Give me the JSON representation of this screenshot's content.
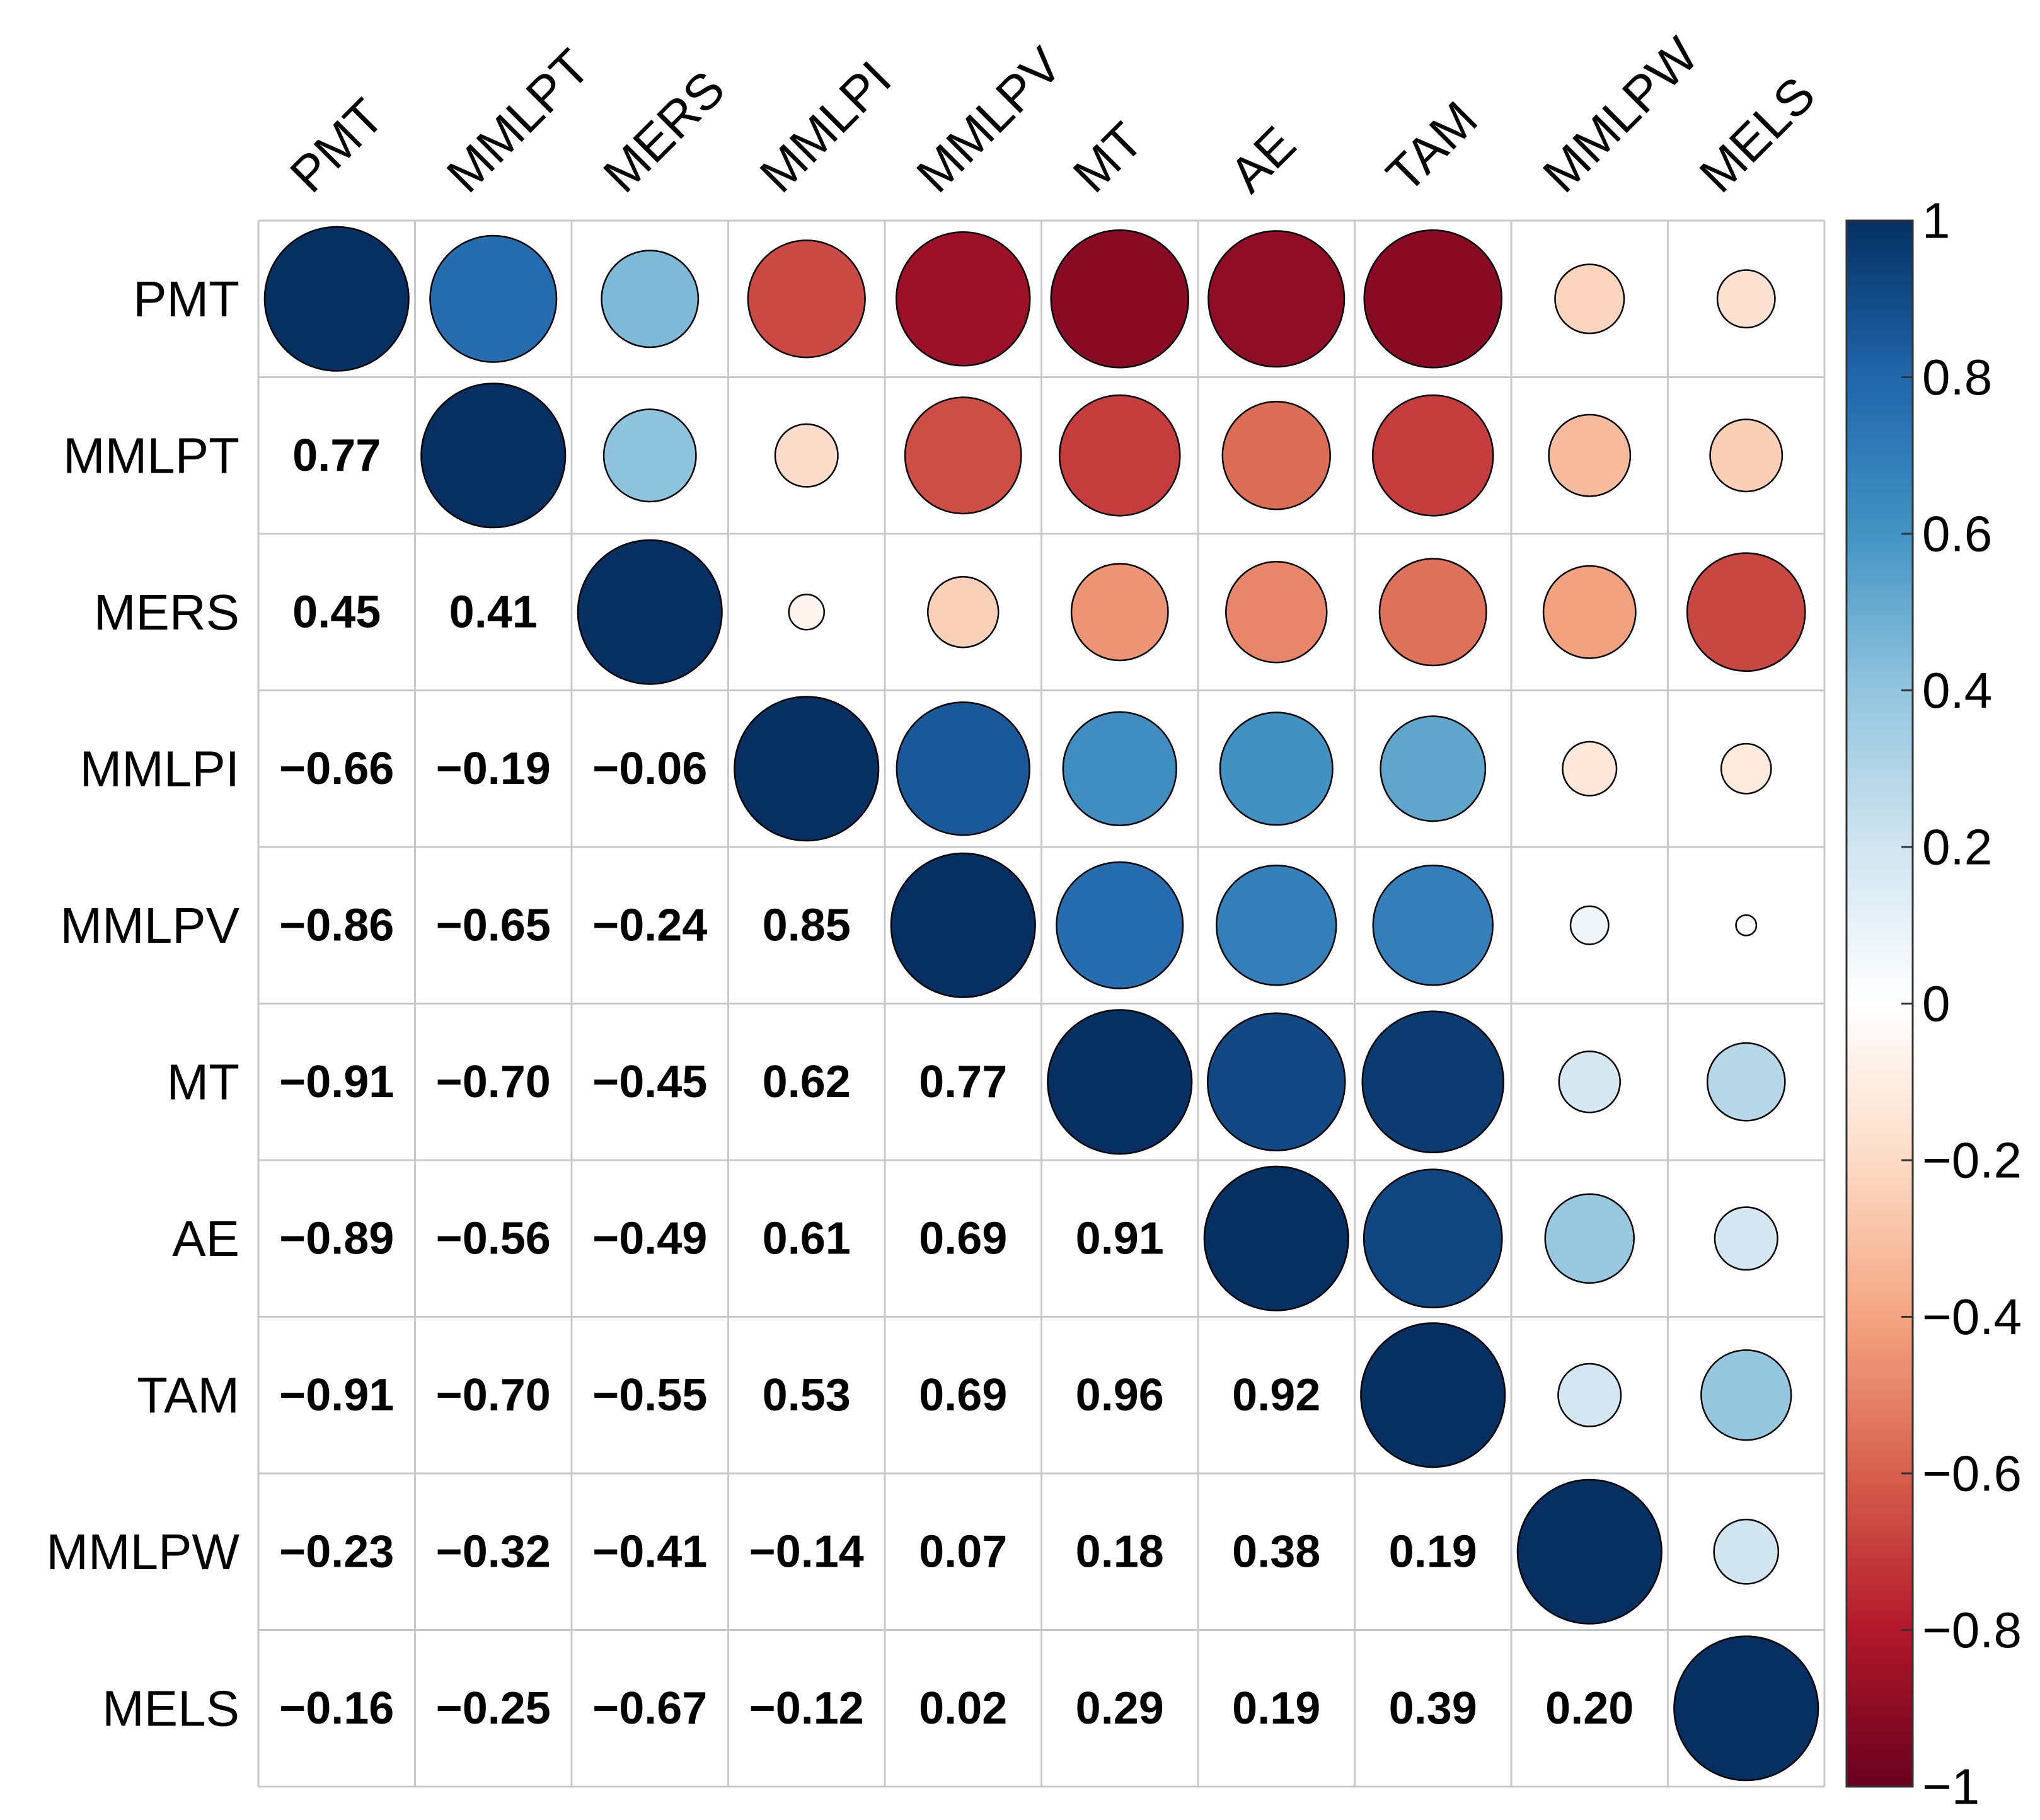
{
  "chart_data": {
    "type": "correlation-matrix",
    "variables": [
      "PMT",
      "MMLPT",
      "MERS",
      "MMLPI",
      "MMLPV",
      "MT",
      "AE",
      "TAM",
      "MMLPW",
      "MELS"
    ],
    "lower_triangle_display": "numbers",
    "upper_triangle_display": "circles",
    "matrix": [
      [
        1.0,
        0.77,
        0.45,
        -0.66,
        -0.86,
        -0.91,
        -0.89,
        -0.91,
        -0.23,
        -0.16
      ],
      [
        0.77,
        1.0,
        0.41,
        -0.19,
        -0.65,
        -0.7,
        -0.56,
        -0.7,
        -0.32,
        -0.25
      ],
      [
        0.45,
        0.41,
        1.0,
        -0.06,
        -0.24,
        -0.45,
        -0.49,
        -0.55,
        -0.41,
        -0.67
      ],
      [
        -0.66,
        -0.19,
        -0.06,
        1.0,
        0.85,
        0.62,
        0.61,
        0.53,
        -0.14,
        -0.12
      ],
      [
        -0.86,
        -0.65,
        -0.24,
        0.85,
        1.0,
        0.77,
        0.69,
        0.69,
        0.07,
        0.02
      ],
      [
        -0.91,
        -0.7,
        -0.45,
        0.62,
        0.77,
        1.0,
        0.91,
        0.96,
        0.18,
        0.29
      ],
      [
        -0.89,
        -0.56,
        -0.49,
        0.61,
        0.69,
        0.91,
        1.0,
        0.92,
        0.38,
        0.19
      ],
      [
        -0.91,
        -0.7,
        -0.55,
        0.53,
        0.69,
        0.96,
        0.92,
        1.0,
        0.19,
        0.39
      ],
      [
        -0.23,
        -0.32,
        -0.41,
        -0.14,
        0.07,
        0.18,
        0.38,
        0.19,
        1.0,
        0.2
      ],
      [
        -0.16,
        -0.25,
        -0.67,
        -0.12,
        0.02,
        0.29,
        0.19,
        0.39,
        0.2,
        1.0
      ]
    ],
    "labels_lower": [
      [],
      [
        "0.77"
      ],
      [
        "0.45",
        "0.41"
      ],
      [
        "−0.66",
        "−0.19",
        "−0.06"
      ],
      [
        "−0.86",
        "−0.65",
        "−0.24",
        "0.85"
      ],
      [
        "−0.91",
        "−0.70",
        "−0.45",
        "0.62",
        "0.77"
      ],
      [
        "−0.89",
        "−0.56",
        "−0.49",
        "0.61",
        "0.69",
        "0.91"
      ],
      [
        "−0.91",
        "−0.70",
        "−0.55",
        "0.53",
        "0.69",
        "0.96",
        "0.92"
      ],
      [
        "−0.23",
        "−0.32",
        "−0.41",
        "−0.14",
        "0.07",
        "0.18",
        "0.38",
        "0.19"
      ],
      [
        "−0.16",
        "−0.25",
        "−0.67",
        "−0.12",
        "0.02",
        "0.29",
        "0.19",
        "0.39",
        "0.20"
      ]
    ],
    "colorbar": {
      "range": [
        -1,
        1
      ],
      "ticks": [
        1,
        0.8,
        0.6,
        0.4,
        0.2,
        0,
        -0.2,
        -0.4,
        -0.6,
        -0.8,
        -1
      ],
      "tick_labels": [
        "1",
        "0.8",
        "0.6",
        "0.4",
        "0.2",
        "0",
        "−0.2",
        "−0.4",
        "−0.6",
        "−0.8",
        "−1"
      ],
      "colors": [
        "#67001F",
        "#B2182B",
        "#D6604D",
        "#F4A582",
        "#FDDBC7",
        "#FFFFFF",
        "#D1E5F0",
        "#92C5DE",
        "#4393C3",
        "#2166AC",
        "#053061"
      ]
    },
    "title": "",
    "xlabel": "",
    "ylabel": ""
  }
}
